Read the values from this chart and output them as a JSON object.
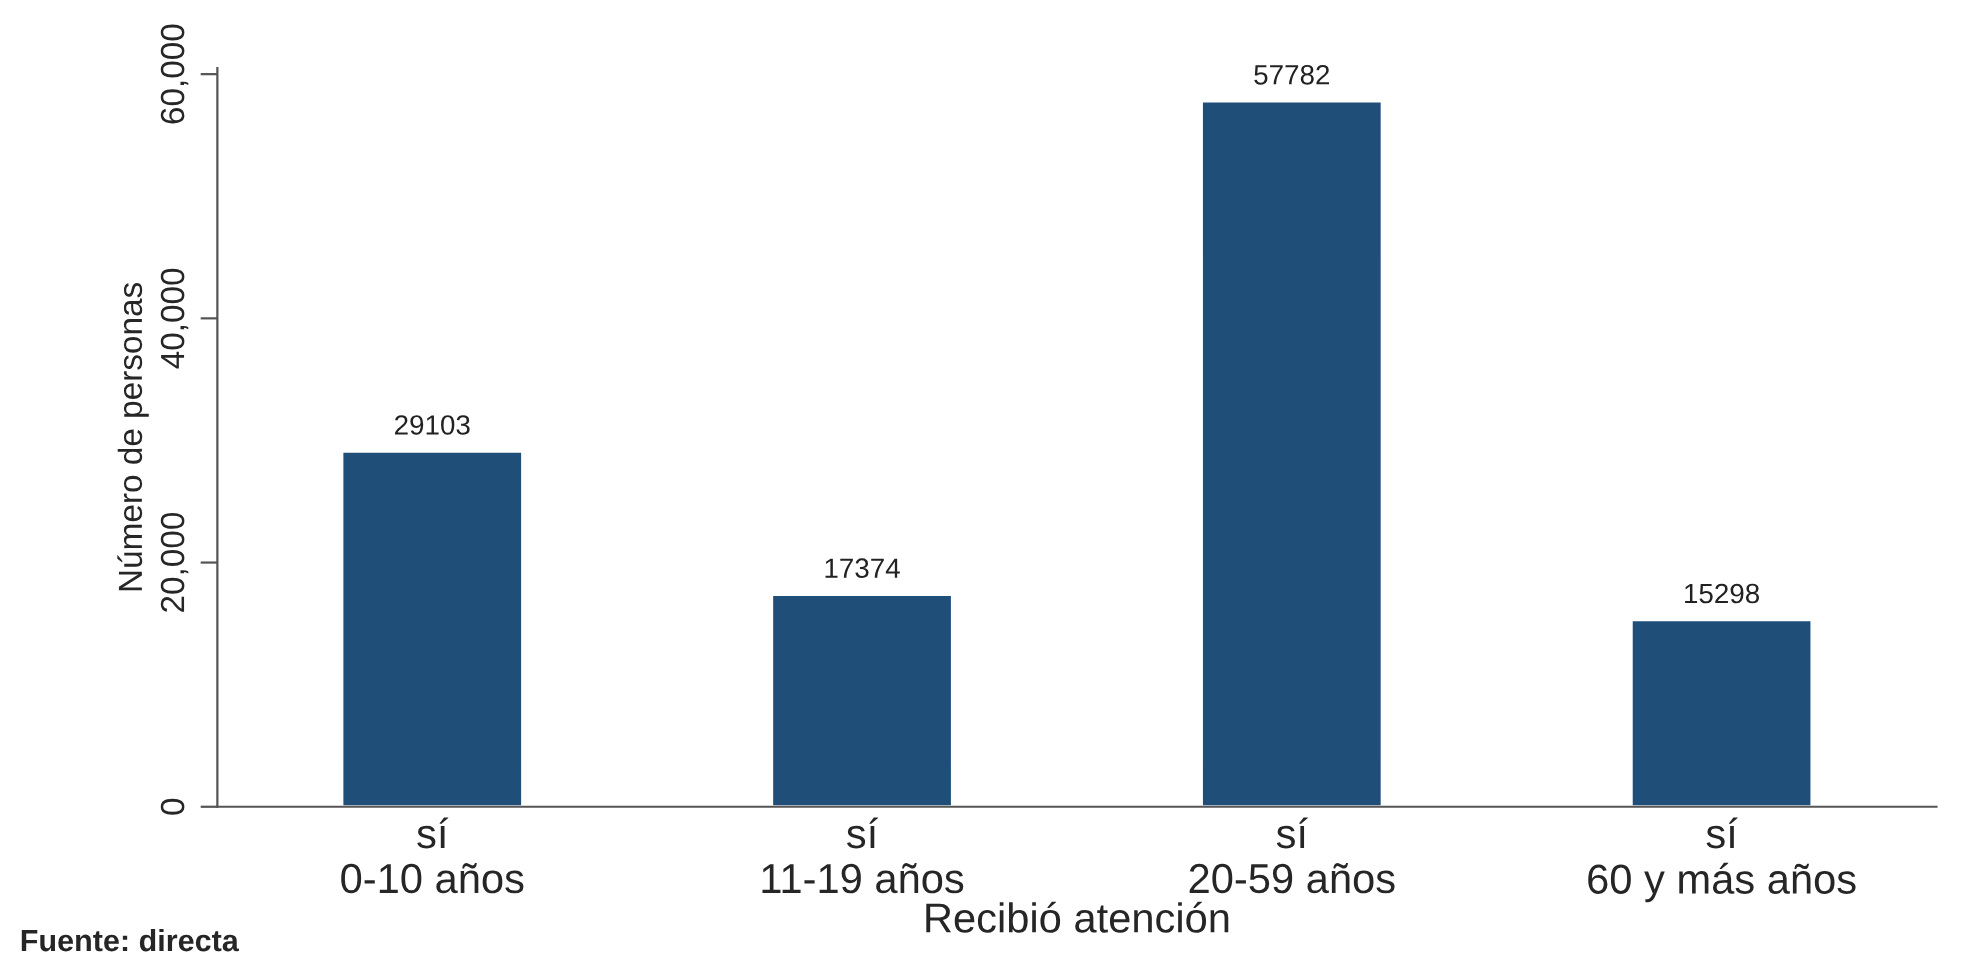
{
  "chart_data": {
    "type": "bar",
    "xlabel": "Recibió atención",
    "ylabel": "Número de personas",
    "categories": [
      "sí\n0-10 años",
      "sí\n11-19 años",
      "sí\n20-59 años",
      "sí\n60 y más años"
    ],
    "values": [
      29103,
      17374,
      57782,
      15298
    ],
    "color": "#1f4e79",
    "ylim": [
      0,
      60500
    ],
    "yticks": [
      0,
      {
        "value": 20000,
        "label": "20,000"
      },
      {
        "value": 40000,
        "label": "40,000"
      },
      {
        "value": 60000,
        "label": "60,000"
      }
    ],
    "data_labels": true,
    "grid": false,
    "annotations": [
      "Fuente: directa"
    ]
  }
}
